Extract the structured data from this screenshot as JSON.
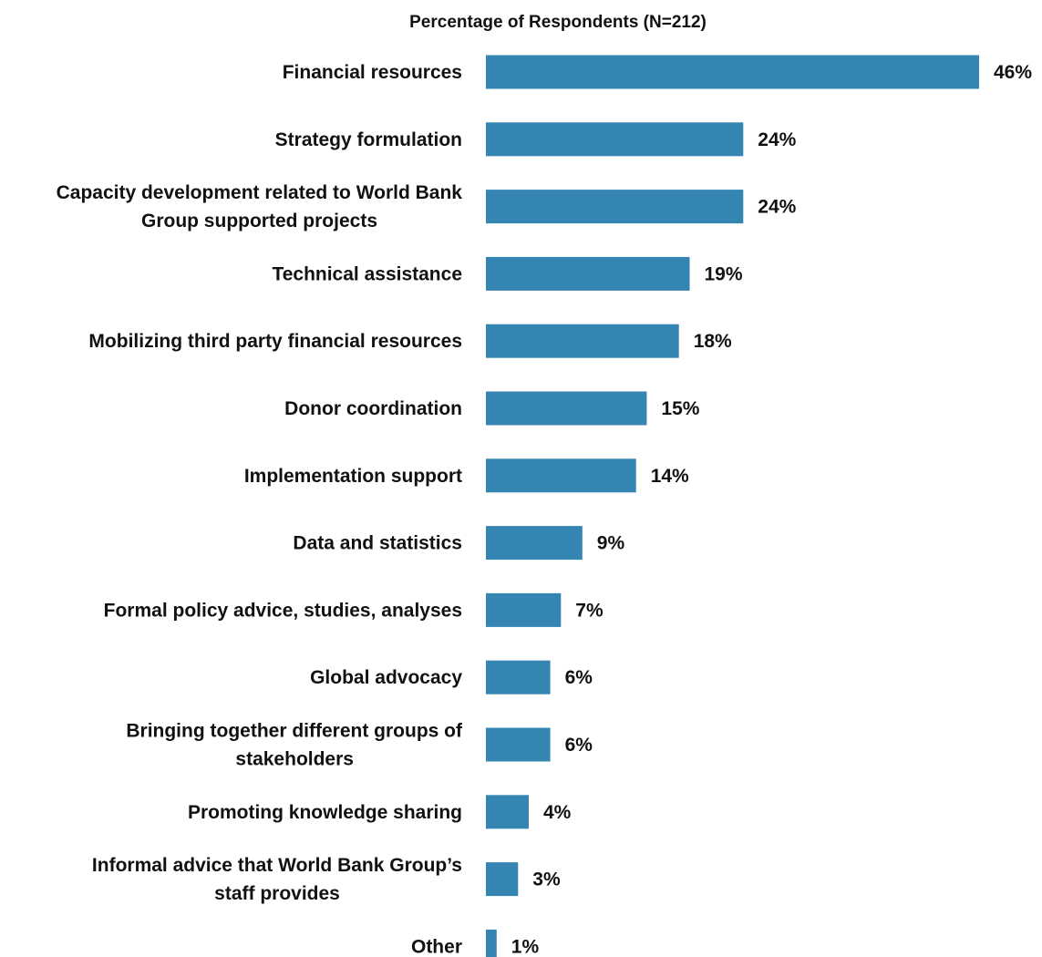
{
  "chart_data": {
    "type": "bar",
    "orientation": "horizontal",
    "title": "Percentage of Respondents (N=212)",
    "xlabel": "",
    "ylabel": "",
    "categories": [
      "Financial resources",
      "Strategy formulation",
      "Capacity development related to World Bank Group supported projects",
      "Technical assistance",
      "Mobilizing third party financial resources",
      "Donor coordination",
      "Implementation support",
      "Data and statistics",
      "Formal policy advice, studies, analyses",
      "Global advocacy",
      "Bringing together different groups of stakeholders",
      "Promoting knowledge sharing",
      "Informal advice that World Bank Group’s staff provides",
      "Other"
    ],
    "category_lines": [
      [
        "Financial resources"
      ],
      [
        "Strategy formulation"
      ],
      [
        "Capacity development related to World Bank",
        "Group supported projects"
      ],
      [
        "Technical assistance"
      ],
      [
        "Mobilizing third party financial resources"
      ],
      [
        "Donor coordination"
      ],
      [
        "Implementation support"
      ],
      [
        "Data and statistics"
      ],
      [
        "Formal policy advice, studies, analyses"
      ],
      [
        "Global advocacy"
      ],
      [
        "Bringing together different groups of",
        "stakeholders"
      ],
      [
        "Promoting knowledge sharing"
      ],
      [
        "Informal advice that World Bank Group’s",
        "staff provides"
      ],
      [
        "Other"
      ]
    ],
    "values": [
      46,
      24,
      24,
      19,
      18,
      15,
      14,
      9,
      7,
      6,
      6,
      4,
      3,
      1
    ],
    "value_labels": [
      "46%",
      "24%",
      "24%",
      "19%",
      "18%",
      "15%",
      "14%",
      "9%",
      "7%",
      "6%",
      "6%",
      "4%",
      "3%",
      "1%"
    ],
    "bar_color": "#3585B3",
    "xlim": [
      0,
      46
    ],
    "grid": false,
    "legend": "none"
  }
}
